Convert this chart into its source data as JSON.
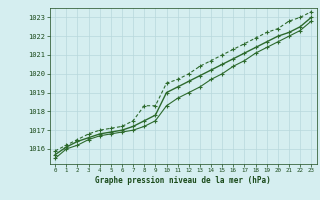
{
  "hours": [
    0,
    1,
    2,
    3,
    4,
    5,
    6,
    7,
    8,
    9,
    10,
    11,
    12,
    13,
    14,
    15,
    16,
    17,
    18,
    19,
    20,
    21,
    22,
    23
  ],
  "pressure_mean": [
    1015.7,
    1016.1,
    1016.4,
    1016.6,
    1016.8,
    1016.9,
    1017.0,
    1017.2,
    1017.5,
    1017.8,
    1019.0,
    1019.3,
    1019.6,
    1019.9,
    1020.2,
    1020.5,
    1020.8,
    1021.1,
    1021.4,
    1021.7,
    1022.0,
    1022.2,
    1022.5,
    1023.0
  ],
  "pressure_min": [
    1015.5,
    1016.0,
    1016.2,
    1016.5,
    1016.7,
    1016.8,
    1016.9,
    1017.0,
    1017.2,
    1017.5,
    1018.3,
    1018.7,
    1019.0,
    1019.3,
    1019.7,
    1020.0,
    1020.4,
    1020.7,
    1021.1,
    1021.4,
    1021.7,
    1022.0,
    1022.3,
    1022.8
  ],
  "pressure_max": [
    1015.9,
    1016.2,
    1016.5,
    1016.8,
    1017.0,
    1017.1,
    1017.2,
    1017.5,
    1018.3,
    1018.3,
    1019.5,
    1019.7,
    1020.0,
    1020.4,
    1020.7,
    1021.0,
    1021.3,
    1021.6,
    1021.9,
    1022.2,
    1022.4,
    1022.8,
    1023.0,
    1023.3
  ],
  "line_color": "#2d6a2d",
  "bg_color": "#d5eef0",
  "grid_color": "#b8d8dc",
  "tick_color": "#1a4a1a",
  "xlabel": "Graphe pression niveau de la mer (hPa)",
  "ylim": [
    1015.2,
    1023.5
  ],
  "yticks": [
    1016,
    1017,
    1018,
    1019,
    1020,
    1021,
    1022,
    1023
  ],
  "xticks": [
    0,
    1,
    2,
    3,
    4,
    5,
    6,
    7,
    8,
    9,
    10,
    11,
    12,
    13,
    14,
    15,
    16,
    17,
    18,
    19,
    20,
    21,
    22,
    23
  ]
}
